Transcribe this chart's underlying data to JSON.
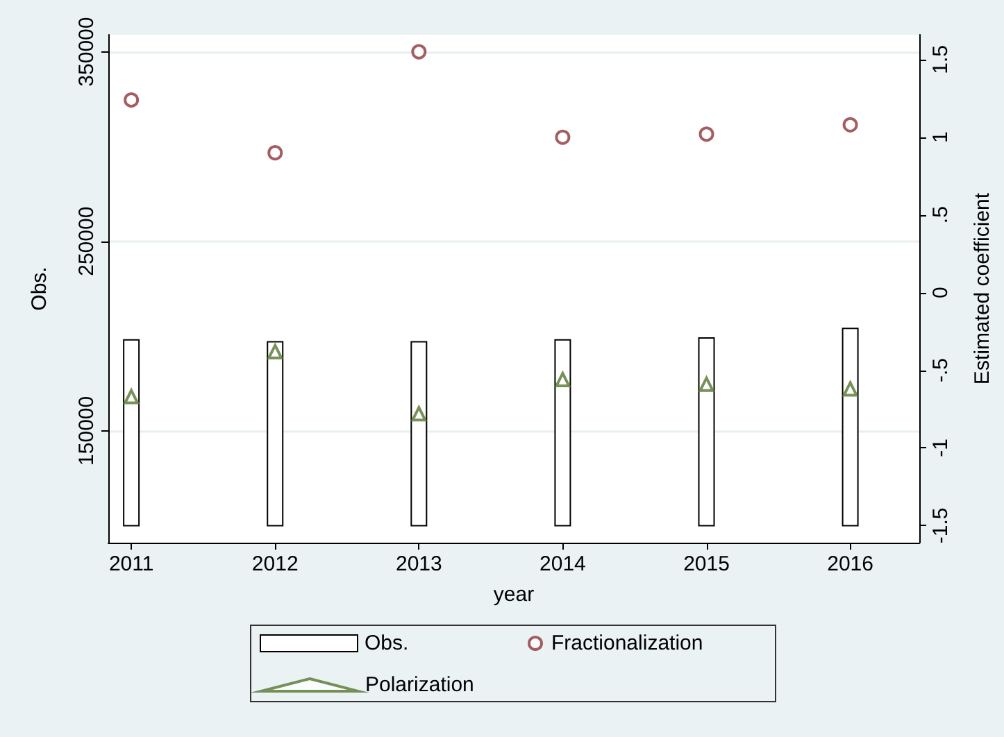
{
  "chart_data": {
    "type": "bar",
    "xlabel": "year",
    "ylabel": "Obs.",
    "y2label": "Estimated coefficient",
    "x": [
      2011,
      2012,
      2013,
      2014,
      2015,
      2016
    ],
    "xlim": [
      2010.84,
      2016.48
    ],
    "xticks": [
      2011,
      2012,
      2013,
      2014,
      2015,
      2016
    ],
    "ylim": [
      91000,
      359000
    ],
    "yticks": [
      150000,
      250000,
      350000
    ],
    "y2lim": [
      -1.61,
      1.66
    ],
    "y2ticks": [
      {
        "value": -1.5,
        "label": "-1.5"
      },
      -1,
      {
        "value": -0.5,
        "label": "-.5"
      },
      0,
      {
        "value": 0.5,
        "label": ".5"
      },
      1,
      1.5
    ],
    "series": [
      {
        "name": "Obs.",
        "color": "#ffffff",
        "base": [
          100000,
          100000,
          100000,
          100000,
          100000,
          100000
        ],
        "values": [
          98000,
          97000,
          97000,
          98000,
          99000,
          104000
        ]
      },
      {
        "name": "Fractionalization",
        "type": "scatter",
        "axis": "y2",
        "marker": "circle",
        "color": "#90353b",
        "values": [
          1.24,
          0.9,
          1.55,
          1.0,
          1.02,
          1.08
        ]
      },
      {
        "name": "Polarization",
        "type": "scatter",
        "axis": "y2",
        "marker": "triangle",
        "color": "#55752f",
        "values": [
          -0.67,
          -0.38,
          -0.78,
          -0.56,
          -0.59,
          -0.62
        ]
      }
    ],
    "grid": "y",
    "legend": "bottom"
  }
}
